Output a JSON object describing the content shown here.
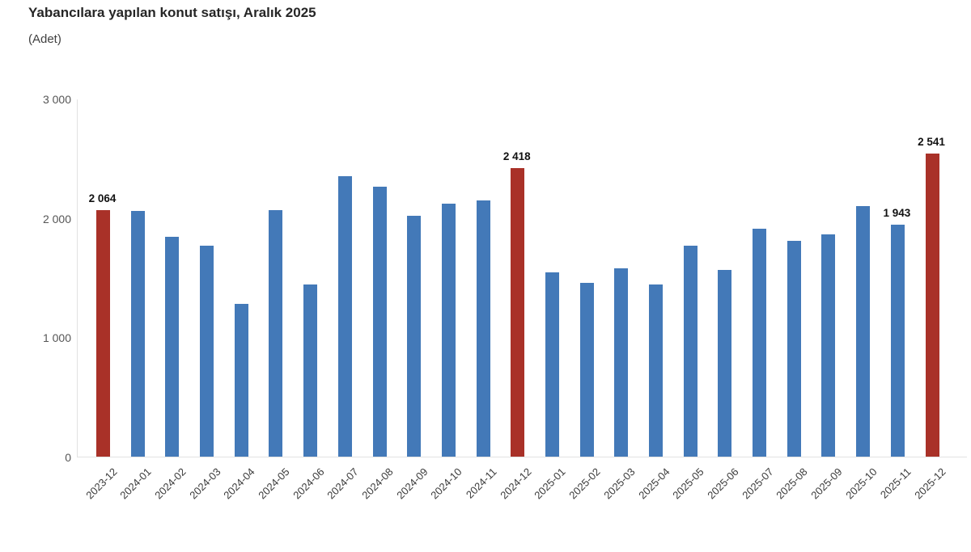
{
  "title": "Yabancılara yapılan konut satışı, Aralık 2025",
  "subtitle": "(Adet)",
  "colors": {
    "bar_default": "#4379B8",
    "bar_highlight": "#A93128",
    "axis_line": "#e2e2e2",
    "tick_text": "#555555",
    "value_text": "#111111"
  },
  "chart_data": {
    "type": "bar",
    "title": "Yabancılara yapılan konut satışı, Aralık 2025",
    "subtitle": "(Adet)",
    "xlabel": "",
    "ylabel": "Adet",
    "ylim": [
      0,
      3000
    ],
    "grid": false,
    "legend": "none",
    "categories": [
      "2023-12",
      "2024-01",
      "2024-02",
      "2024-03",
      "2024-04",
      "2024-05",
      "2024-06",
      "2024-07",
      "2024-08",
      "2024-09",
      "2024-10",
      "2024-11",
      "2024-12",
      "2025-01",
      "2025-02",
      "2025-03",
      "2025-04",
      "2025-05",
      "2025-06",
      "2025-07",
      "2025-08",
      "2025-09",
      "2025-10",
      "2025-11",
      "2025-12"
    ],
    "values": [
      2064,
      2060,
      1840,
      1770,
      1280,
      2065,
      1440,
      2350,
      2260,
      2020,
      2120,
      2150,
      2418,
      1545,
      1455,
      1575,
      1440,
      1770,
      1565,
      1910,
      1805,
      1860,
      2100,
      1943,
      2541
    ],
    "highlight_indices": [
      0,
      12,
      24
    ],
    "data_labels": [
      {
        "index": 0,
        "text": "2 064"
      },
      {
        "index": 12,
        "text": "2 418"
      },
      {
        "index": 23,
        "text": "1 943"
      },
      {
        "index": 24,
        "text": "2 541"
      }
    ],
    "yticks": [
      {
        "value": 0,
        "label": "0"
      },
      {
        "value": 1000,
        "label": "1 000"
      },
      {
        "value": 2000,
        "label": "2 000"
      },
      {
        "value": 3000,
        "label": "3 000"
      }
    ]
  }
}
